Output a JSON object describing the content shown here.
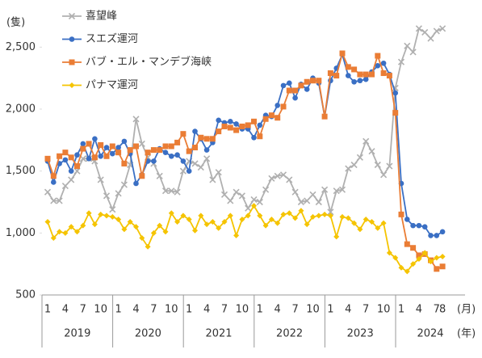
{
  "chart_data": {
    "type": "line",
    "y_unit": "(隻)",
    "x_unit": "(月)",
    "year_unit": "(年)",
    "categories": [
      "1",
      null,
      null,
      "4",
      null,
      null,
      "7",
      null,
      null,
      "10",
      null,
      null,
      "1",
      null,
      null,
      "4",
      null,
      null,
      "7",
      null,
      null,
      "10",
      null,
      null,
      "1",
      null,
      null,
      "4",
      null,
      null,
      "7",
      null,
      null,
      "10",
      null,
      null,
      "1",
      null,
      null,
      "4",
      null,
      null,
      "7",
      null,
      null,
      "10",
      null,
      null,
      "1",
      null,
      null,
      "4",
      null,
      null,
      "7",
      null,
      null,
      "10",
      null,
      null,
      "1",
      null,
      null,
      "4",
      null,
      null,
      "7",
      "8"
    ],
    "year_labels": [
      "2019",
      "2020",
      "2021",
      "2022",
      "2023",
      "2024"
    ],
    "ylim": [
      500,
      2750
    ],
    "yticks": [
      500,
      {
        "value": 1000,
        "label": "1,000"
      },
      {
        "value": 1500,
        "label": "1,500"
      },
      {
        "value": 2000,
        "label": "2,000"
      },
      {
        "value": 2500,
        "label": "2,500"
      }
    ],
    "grid": false,
    "legend": "upper-left",
    "series": [
      {
        "name": "喜望峰",
        "color": "#b0b0b0",
        "marker": "x",
        "values": [
          1330,
          1260,
          1260,
          1380,
          1430,
          1500,
          1600,
          1600,
          1580,
          1430,
          1300,
          1190,
          1320,
          1390,
          1550,
          1920,
          1720,
          1610,
          1560,
          1460,
          1340,
          1340,
          1330,
          1500,
          1580,
          1560,
          1530,
          1600,
          1430,
          1490,
          1310,
          1260,
          1330,
          1300,
          1200,
          1270,
          1250,
          1350,
          1440,
          1460,
          1470,
          1430,
          1330,
          1250,
          1260,
          1310,
          1250,
          1350,
          1170,
          1340,
          1350,
          1520,
          1550,
          1610,
          1740,
          1660,
          1550,
          1470,
          1540,
          2170,
          2380,
          2510,
          2460,
          2650,
          2620,
          2570,
          2630,
          2650
        ]
      },
      {
        "name": "スエズ運河",
        "color": "#3a6fc4",
        "marker": "circle",
        "values": [
          1580,
          1410,
          1560,
          1590,
          1500,
          1630,
          1720,
          1600,
          1760,
          1620,
          1690,
          1640,
          1690,
          1740,
          1640,
          1400,
          1470,
          1580,
          1580,
          1680,
          1650,
          1620,
          1630,
          1580,
          1500,
          1820,
          1760,
          1670,
          1730,
          1910,
          1890,
          1900,
          1880,
          1840,
          1840,
          1770,
          1870,
          1950,
          1940,
          2030,
          2190,
          2210,
          2090,
          2200,
          2160,
          2250,
          2210,
          1940,
          2230,
          2330,
          2440,
          2270,
          2220,
          2230,
          2240,
          2300,
          2350,
          2370,
          2280,
          2130,
          1400,
          1110,
          1060,
          1060,
          1050,
          980,
          980,
          1010
        ]
      },
      {
        "name": "バブ・エル・マンデブ海峡",
        "color": "#ea7d35",
        "marker": "square",
        "values": [
          1600,
          1460,
          1620,
          1650,
          1610,
          1540,
          1680,
          1720,
          1610,
          1710,
          1620,
          1700,
          1650,
          1560,
          1670,
          1700,
          1460,
          1650,
          1670,
          1670,
          1700,
          1700,
          1730,
          1800,
          1660,
          1690,
          1770,
          1760,
          1760,
          1820,
          1860,
          1850,
          1830,
          1860,
          1870,
          1900,
          1780,
          1920,
          1950,
          1930,
          2020,
          2150,
          2150,
          2190,
          2220,
          2230,
          2230,
          1940,
          2290,
          2270,
          2450,
          2340,
          2320,
          2280,
          2280,
          2280,
          2430,
          2290,
          2270,
          1970,
          1150,
          910,
          880,
          820,
          830,
          780,
          710,
          730
        ]
      },
      {
        "name": "パナマ運河",
        "color": "#f5c400",
        "marker": "diamond",
        "values": [
          1090,
          960,
          1010,
          1000,
          1050,
          1010,
          1060,
          1160,
          1070,
          1150,
          1140,
          1130,
          1110,
          1030,
          1090,
          1050,
          960,
          890,
          1000,
          1060,
          1010,
          1160,
          1090,
          1140,
          1110,
          1020,
          1140,
          1070,
          1090,
          1040,
          1090,
          1140,
          980,
          1110,
          1140,
          1220,
          1140,
          1060,
          1110,
          1080,
          1150,
          1160,
          1120,
          1180,
          1070,
          1130,
          1140,
          1150,
          1140,
          970,
          1130,
          1120,
          1080,
          1030,
          1110,
          1090,
          1040,
          1080,
          840,
          800,
          720,
          690,
          750,
          790,
          840,
          770,
          800,
          810
        ]
      }
    ]
  }
}
